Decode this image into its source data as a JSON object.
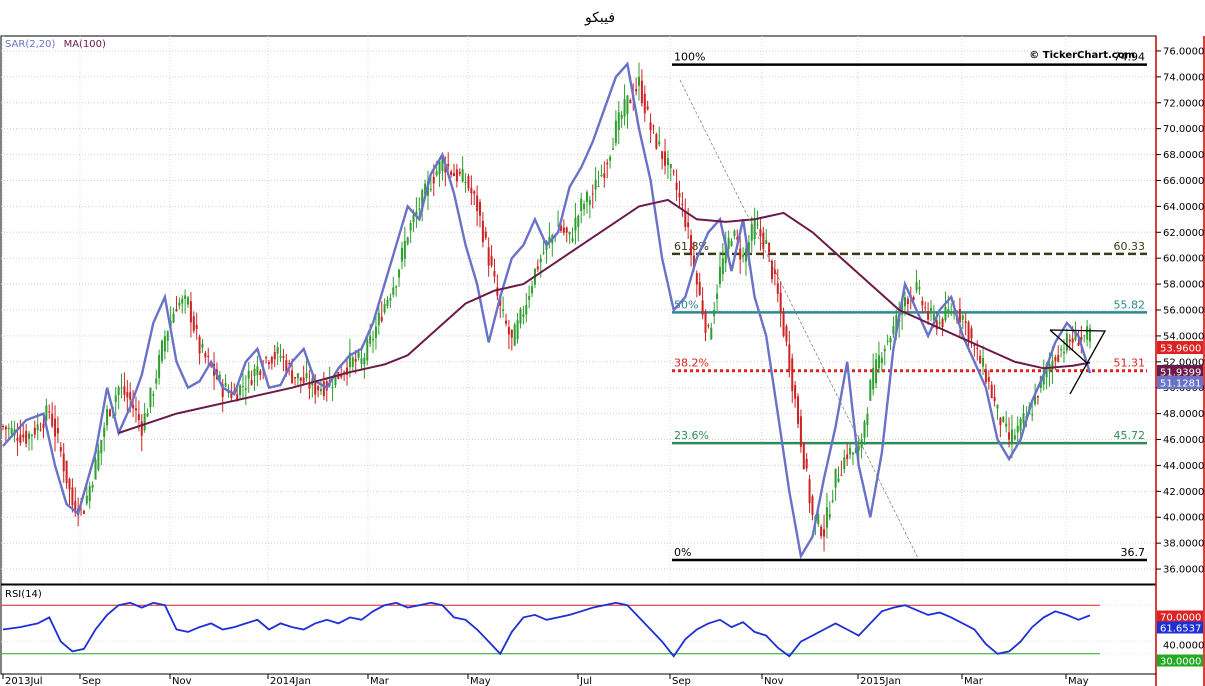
{
  "title": "فيبكو",
  "watermark": "© TickerChart.com",
  "chart_data": {
    "type": "line",
    "indicators": {
      "sar_ma_label": [
        "SAR(2,20)",
        "MA(100)"
      ],
      "rsi_label": "RSI(14)"
    },
    "price_axis": {
      "ylim": [
        35,
        77
      ],
      "ticks": [
        "36.0000",
        "38.0000",
        "40.0000",
        "42.0000",
        "44.0000",
        "46.0000",
        "48.0000",
        "50.0000",
        "52.0000",
        "54.0000",
        "56.0000",
        "58.0000",
        "60.0000",
        "62.0000",
        "64.0000",
        "66.0000",
        "68.0000",
        "70.0000",
        "72.0000",
        "74.0000",
        "76.0000"
      ]
    },
    "rsi_axis": {
      "ylim": [
        15,
        85
      ],
      "ticks": [
        "30.0000",
        "40.0000",
        "70.0000"
      ],
      "overbought": 70,
      "oversold": 30
    },
    "x_ticks": [
      "2013Jul",
      "Sep",
      "Nov",
      "2014Jan",
      "Mar",
      "May",
      "Jul",
      "Sep",
      "Nov",
      "2015Jan",
      "Mar",
      "May"
    ],
    "fibonacci": [
      {
        "pct": "100%",
        "value": "74.94",
        "color": "#000000",
        "style": "solid"
      },
      {
        "pct": "61.8%",
        "value": "60.33",
        "color": "#3a3a1a",
        "style": "dashed"
      },
      {
        "pct": "50%",
        "value": "55.82",
        "color": "#2a8a90",
        "style": "solid"
      },
      {
        "pct": "38.2%",
        "value": "51.31",
        "color": "#dd2222",
        "style": "dotted"
      },
      {
        "pct": "23.6%",
        "value": "45.72",
        "color": "#2e8b57",
        "style": "solid"
      },
      {
        "pct": "0%",
        "value": "36.7",
        "color": "#000000",
        "style": "solid"
      }
    ],
    "price_tags": [
      {
        "label": "53.9600",
        "color": "#dd2222"
      },
      {
        "label": "51.9399",
        "color": "#6b1a4a"
      },
      {
        "label": "51.1281",
        "color": "#6a72c8"
      }
    ],
    "rsi_tags": [
      {
        "label": "70.0000",
        "color": "#dd2222"
      },
      {
        "label": "61.6537",
        "color": "#1f2fd6"
      },
      {
        "label": "30.0000",
        "color": "#22aa22"
      }
    ],
    "close_path": [
      [
        0,
        47
      ],
      [
        4,
        46.5
      ],
      [
        8,
        46.2
      ],
      [
        12,
        47
      ],
      [
        16,
        48.2
      ],
      [
        20,
        45
      ],
      [
        24,
        41
      ],
      [
        28,
        40.8
      ],
      [
        32,
        44
      ],
      [
        36,
        48
      ],
      [
        40,
        50
      ],
      [
        44,
        49
      ],
      [
        48,
        47
      ],
      [
        52,
        50
      ],
      [
        56,
        54
      ],
      [
        60,
        56.5
      ],
      [
        64,
        56.5
      ],
      [
        68,
        53
      ],
      [
        72,
        51.5
      ],
      [
        76,
        50
      ],
      [
        80,
        49.5
      ],
      [
        84,
        50.5
      ],
      [
        88,
        51.5
      ],
      [
        92,
        52.5
      ],
      [
        96,
        52.5
      ],
      [
        100,
        51
      ],
      [
        104,
        50.5
      ],
      [
        108,
        50
      ],
      [
        112,
        50.2
      ],
      [
        116,
        51
      ],
      [
        120,
        52
      ],
      [
        124,
        52
      ],
      [
        128,
        54
      ],
      [
        132,
        56.5
      ],
      [
        136,
        58.5
      ],
      [
        140,
        62
      ],
      [
        144,
        64
      ],
      [
        148,
        66
      ],
      [
        152,
        67.5
      ],
      [
        156,
        66.5
      ],
      [
        160,
        66
      ],
      [
        164,
        64
      ],
      [
        168,
        60
      ],
      [
        172,
        56
      ],
      [
        176,
        53.5
      ],
      [
        180,
        56
      ],
      [
        184,
        59
      ],
      [
        188,
        61
      ],
      [
        192,
        62.5
      ],
      [
        196,
        61.5
      ],
      [
        200,
        64
      ],
      [
        204,
        65
      ],
      [
        208,
        67
      ],
      [
        212,
        70
      ],
      [
        216,
        72
      ],
      [
        220,
        73.5
      ],
      [
        224,
        70
      ],
      [
        228,
        68
      ],
      [
        232,
        66
      ],
      [
        236,
        63
      ],
      [
        240,
        58
      ],
      [
        244,
        54
      ],
      [
        248,
        59
      ],
      [
        252,
        62
      ],
      [
        256,
        60
      ],
      [
        260,
        62.5
      ],
      [
        264,
        61
      ],
      [
        268,
        57
      ],
      [
        272,
        52
      ],
      [
        276,
        46
      ],
      [
        280,
        40
      ],
      [
        284,
        39
      ],
      [
        288,
        43
      ],
      [
        292,
        45
      ],
      [
        296,
        45
      ],
      [
        300,
        50
      ],
      [
        304,
        53
      ],
      [
        308,
        54.5
      ],
      [
        312,
        57
      ],
      [
        316,
        57.5
      ],
      [
        320,
        55.5
      ],
      [
        324,
        55
      ],
      [
        328,
        56
      ],
      [
        332,
        55.5
      ],
      [
        336,
        53
      ],
      [
        340,
        51
      ],
      [
        344,
        48
      ],
      [
        348,
        46
      ],
      [
        352,
        47
      ],
      [
        356,
        48.5
      ],
      [
        360,
        51
      ],
      [
        364,
        52.5
      ],
      [
        368,
        53.5
      ],
      [
        372,
        53.9
      ],
      [
        376,
        53.96
      ]
    ],
    "sar_path": [
      [
        0,
        45.5
      ],
      [
        8,
        47.5
      ],
      [
        14,
        48
      ],
      [
        18,
        44
      ],
      [
        22,
        41
      ],
      [
        26,
        40.3
      ],
      [
        32,
        45
      ],
      [
        36,
        50
      ],
      [
        40,
        46.5
      ],
      [
        44,
        48.5
      ],
      [
        48,
        51
      ],
      [
        52,
        55
      ],
      [
        56,
        57
      ],
      [
        60,
        52
      ],
      [
        64,
        50
      ],
      [
        68,
        50.5
      ],
      [
        72,
        52
      ],
      [
        76,
        50
      ],
      [
        80,
        49.5
      ],
      [
        84,
        52
      ],
      [
        88,
        53
      ],
      [
        92,
        50
      ],
      [
        96,
        50.2
      ],
      [
        100,
        52
      ],
      [
        104,
        53
      ],
      [
        108,
        50.5
      ],
      [
        112,
        50
      ],
      [
        116,
        51.5
      ],
      [
        120,
        52.5
      ],
      [
        124,
        53
      ],
      [
        128,
        55
      ],
      [
        132,
        58
      ],
      [
        136,
        61
      ],
      [
        140,
        64
      ],
      [
        144,
        63
      ],
      [
        148,
        66.5
      ],
      [
        152,
        68
      ],
      [
        156,
        65
      ],
      [
        160,
        61
      ],
      [
        164,
        58
      ],
      [
        168,
        53.5
      ],
      [
        172,
        57
      ],
      [
        176,
        60
      ],
      [
        180,
        61
      ],
      [
        184,
        63
      ],
      [
        188,
        61
      ],
      [
        192,
        62
      ],
      [
        196,
        65.5
      ],
      [
        200,
        67
      ],
      [
        204,
        69
      ],
      [
        208,
        71.5
      ],
      [
        212,
        74
      ],
      [
        216,
        75
      ],
      [
        220,
        70
      ],
      [
        224,
        66
      ],
      [
        228,
        60
      ],
      [
        232,
        56
      ],
      [
        236,
        57
      ],
      [
        240,
        60
      ],
      [
        244,
        62
      ],
      [
        248,
        63
      ],
      [
        252,
        59
      ],
      [
        256,
        63
      ],
      [
        260,
        57
      ],
      [
        264,
        54
      ],
      [
        268,
        48
      ],
      [
        272,
        42
      ],
      [
        276,
        37
      ],
      [
        280,
        38.5
      ],
      [
        284,
        43
      ],
      [
        288,
        47
      ],
      [
        292,
        52
      ],
      [
        296,
        44
      ],
      [
        300,
        40
      ],
      [
        304,
        45
      ],
      [
        308,
        53
      ],
      [
        312,
        58
      ],
      [
        316,
        56
      ],
      [
        320,
        54
      ],
      [
        324,
        56
      ],
      [
        328,
        57
      ],
      [
        332,
        54
      ],
      [
        336,
        52
      ],
      [
        340,
        50
      ],
      [
        344,
        46
      ],
      [
        348,
        44.5
      ],
      [
        352,
        46
      ],
      [
        356,
        49
      ],
      [
        360,
        51
      ],
      [
        364,
        53.5
      ],
      [
        368,
        55
      ],
      [
        372,
        54
      ],
      [
        376,
        51.13
      ]
    ],
    "ma_path": [
      [
        40,
        46.5
      ],
      [
        60,
        48
      ],
      [
        80,
        49
      ],
      [
        100,
        50
      ],
      [
        120,
        51.2
      ],
      [
        132,
        51.8
      ],
      [
        140,
        52.5
      ],
      [
        150,
        54.5
      ],
      [
        160,
        56.5
      ],
      [
        170,
        57.5
      ],
      [
        180,
        58
      ],
      [
        190,
        59.5
      ],
      [
        200,
        61
      ],
      [
        210,
        62.5
      ],
      [
        220,
        64
      ],
      [
        230,
        64.5
      ],
      [
        240,
        63
      ],
      [
        250,
        62.8
      ],
      [
        260,
        63
      ],
      [
        270,
        63.5
      ],
      [
        280,
        62
      ],
      [
        290,
        60
      ],
      [
        300,
        58
      ],
      [
        310,
        56
      ],
      [
        320,
        55
      ],
      [
        330,
        54
      ],
      [
        340,
        53
      ],
      [
        350,
        52
      ],
      [
        360,
        51.5
      ],
      [
        370,
        51.7
      ],
      [
        376,
        51.94
      ]
    ],
    "rsi_path": [
      [
        0,
        50
      ],
      [
        6,
        52
      ],
      [
        12,
        55
      ],
      [
        16,
        60
      ],
      [
        20,
        40
      ],
      [
        24,
        32
      ],
      [
        28,
        34
      ],
      [
        32,
        50
      ],
      [
        36,
        62
      ],
      [
        40,
        70
      ],
      [
        44,
        72
      ],
      [
        48,
        68
      ],
      [
        52,
        72
      ],
      [
        56,
        70
      ],
      [
        60,
        50
      ],
      [
        64,
        48
      ],
      [
        68,
        52
      ],
      [
        72,
        55
      ],
      [
        76,
        50
      ],
      [
        80,
        52
      ],
      [
        84,
        55
      ],
      [
        88,
        58
      ],
      [
        92,
        50
      ],
      [
        96,
        55
      ],
      [
        100,
        52
      ],
      [
        104,
        50
      ],
      [
        108,
        55
      ],
      [
        112,
        58
      ],
      [
        116,
        55
      ],
      [
        120,
        60
      ],
      [
        124,
        58
      ],
      [
        128,
        65
      ],
      [
        132,
        70
      ],
      [
        136,
        72
      ],
      [
        140,
        68
      ],
      [
        144,
        70
      ],
      [
        148,
        72
      ],
      [
        152,
        70
      ],
      [
        156,
        60
      ],
      [
        160,
        58
      ],
      [
        164,
        50
      ],
      [
        168,
        40
      ],
      [
        172,
        30
      ],
      [
        176,
        48
      ],
      [
        180,
        60
      ],
      [
        184,
        62
      ],
      [
        188,
        58
      ],
      [
        192,
        60
      ],
      [
        196,
        62
      ],
      [
        200,
        65
      ],
      [
        204,
        68
      ],
      [
        208,
        70
      ],
      [
        212,
        72
      ],
      [
        216,
        70
      ],
      [
        220,
        60
      ],
      [
        224,
        50
      ],
      [
        228,
        40
      ],
      [
        232,
        28
      ],
      [
        236,
        42
      ],
      [
        240,
        50
      ],
      [
        244,
        55
      ],
      [
        248,
        58
      ],
      [
        252,
        52
      ],
      [
        256,
        56
      ],
      [
        260,
        48
      ],
      [
        264,
        45
      ],
      [
        268,
        35
      ],
      [
        272,
        28
      ],
      [
        276,
        40
      ],
      [
        280,
        45
      ],
      [
        284,
        50
      ],
      [
        288,
        55
      ],
      [
        292,
        50
      ],
      [
        296,
        45
      ],
      [
        300,
        55
      ],
      [
        304,
        65
      ],
      [
        308,
        68
      ],
      [
        312,
        70
      ],
      [
        316,
        66
      ],
      [
        320,
        62
      ],
      [
        324,
        64
      ],
      [
        328,
        60
      ],
      [
        332,
        55
      ],
      [
        336,
        50
      ],
      [
        340,
        38
      ],
      [
        344,
        30
      ],
      [
        348,
        32
      ],
      [
        352,
        40
      ],
      [
        356,
        52
      ],
      [
        360,
        60
      ],
      [
        364,
        65
      ],
      [
        368,
        62
      ],
      [
        372,
        58
      ],
      [
        376,
        61.65
      ]
    ]
  }
}
